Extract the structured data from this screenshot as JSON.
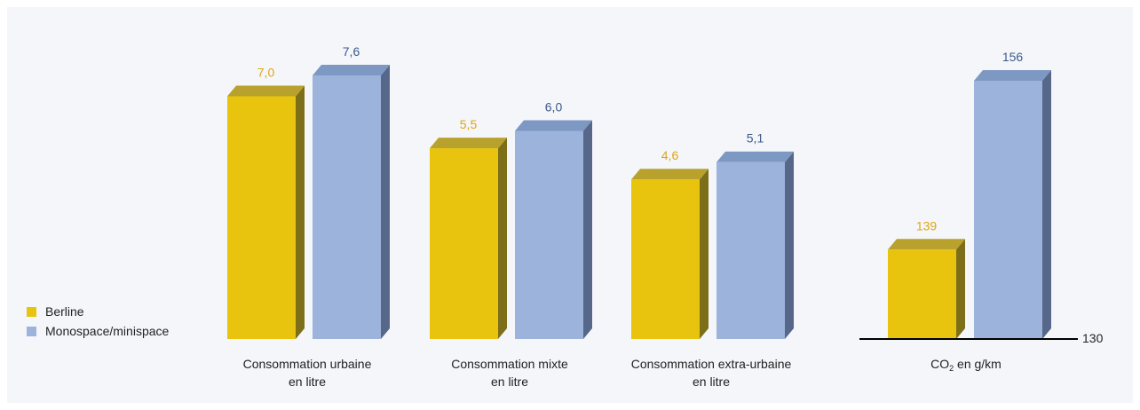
{
  "colors": {
    "berline": "#e8c40f",
    "berline_top": "#b8a12c",
    "berline_side": "#7d6f1a",
    "mono": "#9cb3dc",
    "mono_top": "#7d98c2",
    "mono_side": "#56678a",
    "berline_label": "#e0a514",
    "mono_label": "#3d5a8c"
  },
  "legend": [
    {
      "label": "Berline",
      "color": "#e8c40f"
    },
    {
      "label": "Monospace/minispace",
      "color": "#9cb3dc"
    }
  ],
  "category_labels": [
    {
      "line1": "Consommation urbaine",
      "line2": "en litre"
    },
    {
      "line1": "Consommation mixte",
      "line2": "en litre"
    },
    {
      "line1": "Consommation extra-urbaine",
      "line2": "en litre"
    }
  ],
  "co2_label": {
    "prefix": "CO",
    "sub": "2",
    "suffix": " en g/km"
  },
  "reference_line_label": "130",
  "chart_data": [
    {
      "type": "bar",
      "categories": [
        "Consommation urbaine en litre",
        "Consommation mixte en litre",
        "Consommation extra-urbaine en litre"
      ],
      "series": [
        {
          "name": "Berline",
          "values": [
            7.0,
            5.5,
            4.6
          ],
          "labels": [
            "7,0",
            "5,5",
            "4,6"
          ]
        },
        {
          "name": "Monospace/minispace",
          "values": [
            7.6,
            6.0,
            5.1
          ],
          "labels": [
            "7,6",
            "6,0",
            "5,1"
          ]
        }
      ],
      "ylim": [
        0,
        8.5
      ]
    },
    {
      "type": "bar",
      "categories": [
        "CO2 en g/km"
      ],
      "series": [
        {
          "name": "Berline",
          "values": [
            139
          ],
          "labels": [
            "139"
          ]
        },
        {
          "name": "Monospace/minispace",
          "values": [
            156
          ],
          "labels": [
            "156"
          ]
        }
      ],
      "ylim": [
        130,
        160
      ],
      "reference_line": 130
    }
  ]
}
